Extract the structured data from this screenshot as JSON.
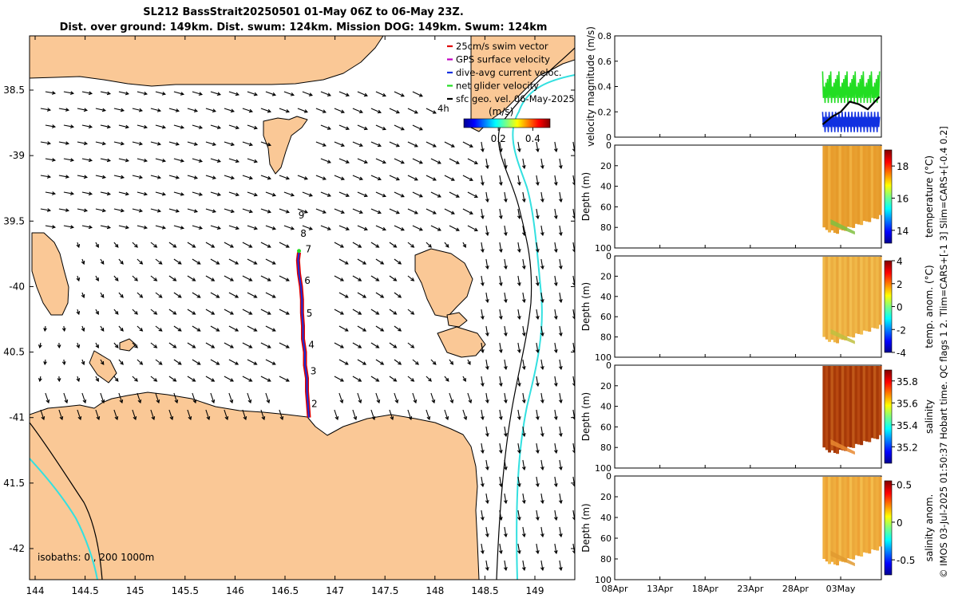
{
  "header": {
    "title_line1": "SL212 BassStrait20250501 01-May 06Z to 06-May 23Z.",
    "title_line2": "Dist. over ground: 149km. Dist. swum: 124km. Mission DOG: 149km. Swum: 124km"
  },
  "side_note": "© IMOS 03-Jul-2025 01:50:37 Hobart time. QC flags 1  2. Tlim=CARS+[-1 3] Slim=CARS+[-0.4 0.2]",
  "colors": {
    "land": "#FAC896",
    "ocean": "#FFFFFF",
    "isobath_200": "#000000",
    "isobath_1000": "#33E0E0",
    "track_red": "#E00000",
    "track_blue": "#1030E0",
    "green": "#22DD22"
  },
  "chart_data": [
    {
      "type": "map",
      "name": "glider-track-map",
      "xlim": [
        143.9,
        149.4
      ],
      "ylim": [
        -42.25,
        -38.1
      ],
      "x_ticks": [
        144,
        144.5,
        145,
        145.5,
        146,
        146.5,
        147,
        147.5,
        148,
        148.5,
        149
      ],
      "x_tick_labels": [
        "144",
        "144.5",
        "145",
        "145.5",
        "146",
        "146.5",
        "147",
        "147.5",
        "148",
        "148.5",
        "149"
      ],
      "y_ticks": [
        -38.5,
        -39,
        -39.5,
        -40,
        -40.5,
        -41,
        -41.5,
        -42
      ],
      "y_tick_labels": [
        "38.5",
        "-39",
        "39.5",
        "-40",
        "40.5",
        "-41",
        "41.5",
        "-42"
      ],
      "legend": {
        "entries": [
          {
            "label": "25cm/s swim vector",
            "color": "#E00000"
          },
          {
            "label": "GPS surface velocity",
            "color": "#C000C0"
          },
          {
            "label": "dive-avg current veloc.",
            "color": "#1030E0"
          },
          {
            "label": "net glider velocity",
            "color": "#22DD22"
          },
          {
            "label": "sfc geo. vel. 06-May-2025",
            "color": "#000000"
          }
        ],
        "placement": "top-right"
      },
      "colorbar": {
        "label": "(m/s)",
        "label_4h": "4h",
        "tick_labels": [
          "0.2",
          "0.4"
        ],
        "ticks": [
          0.2,
          0.4
        ],
        "range": [
          0,
          0.5
        ]
      },
      "isobaths_text": "isobaths: 0 , 200  1000m",
      "day_markers": [
        {
          "label": "2",
          "lon": 146.74,
          "lat": -40.92
        },
        {
          "label": "3",
          "lon": 146.73,
          "lat": -40.67
        },
        {
          "label": "4",
          "lon": 146.71,
          "lat": -40.47
        },
        {
          "label": "5",
          "lon": 146.69,
          "lat": -40.23
        },
        {
          "label": "6",
          "lon": 146.67,
          "lat": -39.98
        },
        {
          "label": "7",
          "lon": 146.68,
          "lat": -39.74
        },
        {
          "label": "8",
          "lon": 146.63,
          "lat": -39.62
        },
        {
          "label": "9",
          "lon": 146.61,
          "lat": -39.48
        }
      ],
      "track": [
        [
          146.74,
          -41.0
        ],
        [
          146.73,
          -40.9
        ],
        [
          146.72,
          -40.8
        ],
        [
          146.72,
          -40.7
        ],
        [
          146.7,
          -40.6
        ],
        [
          146.7,
          -40.5
        ],
        [
          146.68,
          -40.4
        ],
        [
          146.68,
          -40.3
        ],
        [
          146.67,
          -40.2
        ],
        [
          146.67,
          -40.1
        ],
        [
          146.66,
          -40.0
        ],
        [
          146.64,
          -39.9
        ],
        [
          146.63,
          -39.8
        ],
        [
          146.64,
          -39.74
        ]
      ]
    },
    {
      "type": "line",
      "name": "velocity-magnitude",
      "ylabel": "velocity magnitude (m/s)",
      "ylim": [
        0,
        0.8
      ],
      "y_ticks": [
        0,
        0.2,
        0.4,
        0.6,
        0.8
      ],
      "x_tick_labels": [
        "08Apr",
        "13Apr",
        "18Apr",
        "23Apr",
        "28Apr",
        "03May"
      ],
      "xlim_days": [
        0,
        29.5
      ],
      "x_ticks_days": [
        0,
        5,
        10,
        15,
        20,
        25
      ],
      "series_envelopes": [
        {
          "color": "#22DD22",
          "lo": 0.25,
          "hi": 0.52
        },
        {
          "color": "#1030E0",
          "lo": 0.02,
          "hi": 0.2
        }
      ],
      "black_line": [
        [
          23.0,
          0.1
        ],
        [
          24.0,
          0.16
        ],
        [
          25.0,
          0.2
        ],
        [
          26.0,
          0.28
        ],
        [
          27.0,
          0.26
        ],
        [
          28.0,
          0.22
        ],
        [
          29.3,
          0.32
        ]
      ],
      "data_start_day": 23.0,
      "data_end_day": 29.5
    },
    {
      "type": "heatmap",
      "name": "temperature",
      "clabel": "temperature (°C)",
      "ylabel": "Depth (m)",
      "ylim": [
        100,
        0
      ],
      "y_ticks": [
        0,
        20,
        40,
        60,
        80,
        100
      ],
      "clim": [
        13.2,
        19.0
      ],
      "c_ticks": [
        14,
        16,
        18
      ],
      "data_start_day": 23.0,
      "data_end_day": 29.5
    },
    {
      "type": "heatmap",
      "name": "temp-anomaly",
      "clabel": "temp. anom. (°C)",
      "ylabel": "Depth (m)",
      "ylim": [
        100,
        0
      ],
      "y_ticks": [
        0,
        20,
        40,
        60,
        80,
        100
      ],
      "clim": [
        -4,
        4
      ],
      "c_ticks": [
        -4,
        -2,
        0,
        2,
        4
      ],
      "data_start_day": 23.0,
      "data_end_day": 29.5
    },
    {
      "type": "heatmap",
      "name": "salinity",
      "clabel": "salinity",
      "ylabel": "Depth (m)",
      "ylim": [
        100,
        0
      ],
      "y_ticks": [
        0,
        20,
        40,
        60,
        80,
        100
      ],
      "clim": [
        35.05,
        35.9
      ],
      "c_ticks": [
        35.2,
        35.4,
        35.6,
        35.8
      ],
      "data_start_day": 23.0,
      "data_end_day": 29.5
    },
    {
      "type": "heatmap",
      "name": "salinity-anomaly",
      "clabel": "salinity anom.",
      "ylabel": "Depth (m)",
      "ylim": [
        100,
        0
      ],
      "y_ticks": [
        0,
        20,
        40,
        60,
        80,
        100
      ],
      "clim": [
        -0.7,
        0.55
      ],
      "c_ticks": [
        -0.5,
        0,
        0.5
      ],
      "data_start_day": 23.0,
      "data_end_day": 29.5
    }
  ]
}
